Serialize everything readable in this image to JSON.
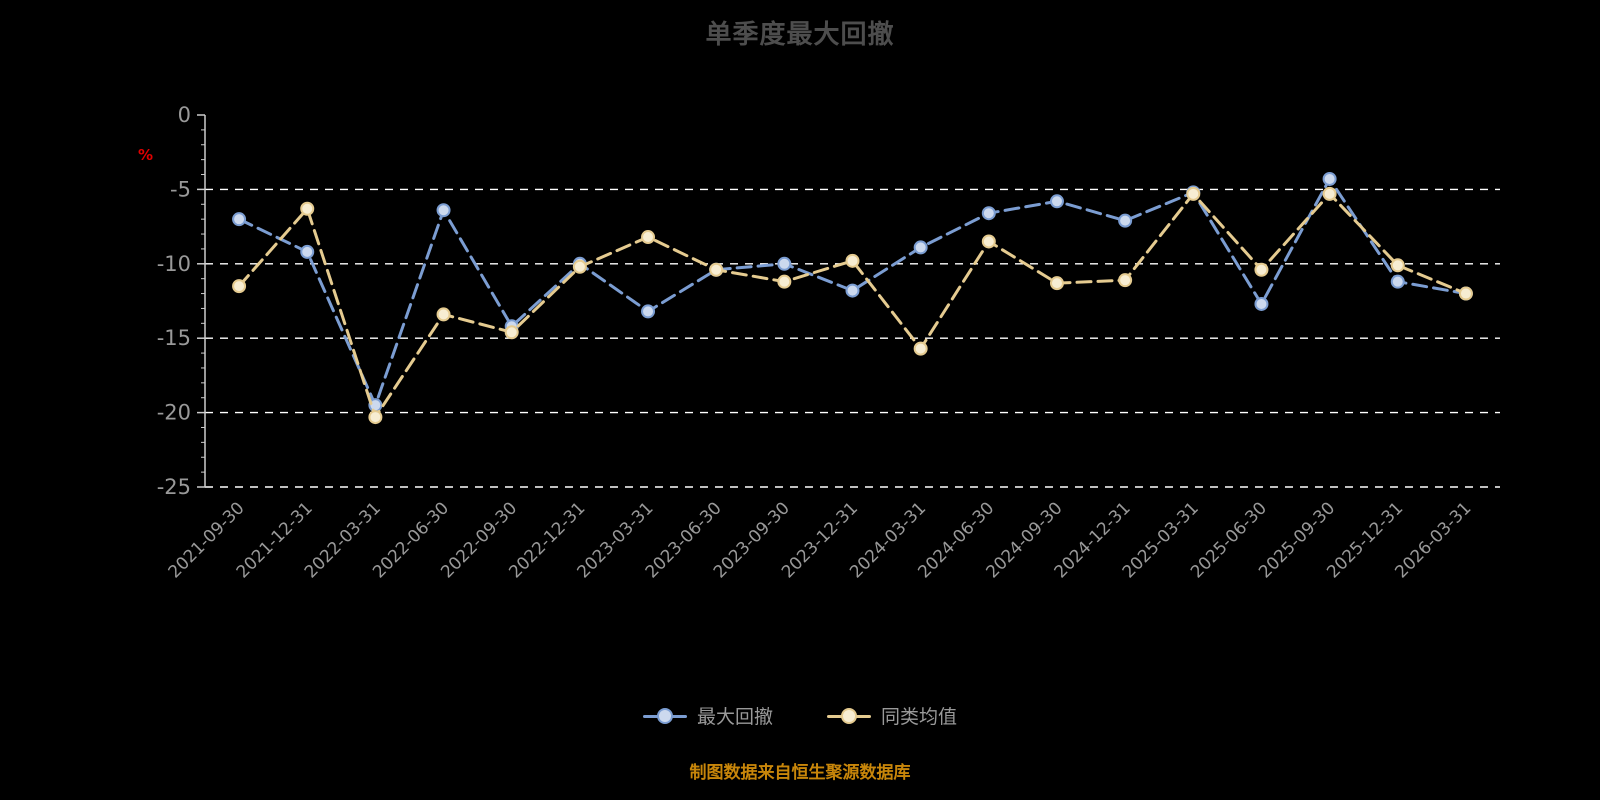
{
  "page": {
    "title": "单季度最大回撤",
    "footer": "制图数据来自恒生聚源数据库"
  },
  "colors": {
    "background": "#000000",
    "title": "#4d4d4d",
    "axis_text": "#999999",
    "axis_line": "#cccccc",
    "grid_line": "#ffffff",
    "percent_label": "#dd0000",
    "footer_text": "#c8860a",
    "legend_text": "#999999",
    "series_blue": "#7b9dd2",
    "series_yellow": "#e5cb90"
  },
  "chart_data": {
    "type": "line",
    "title": "单季度最大回撤",
    "xlabel": "",
    "ylabel": "%",
    "ylim": [
      -25,
      0
    ],
    "yticks": [
      0,
      -5,
      -10,
      -15,
      -20,
      -25
    ],
    "grid": true,
    "legend_position": "bottom",
    "categories": [
      "2021-09-30",
      "2021-12-31",
      "2022-03-31",
      "2022-06-30",
      "2022-09-30",
      "2022-12-31",
      "2023-03-31",
      "2023-06-30",
      "2023-09-30",
      "2023-12-31",
      "2024-03-31",
      "2024-06-30",
      "2024-09-30",
      "2024-12-31",
      "2025-03-31",
      "2025-06-30",
      "2025-09-30",
      "2025-12-31",
      "2026-03-31"
    ],
    "series": [
      {
        "name": "最大回撤",
        "color": "#7b9dd2",
        "marker_fill": "#ccd9ee",
        "values": [
          -7.0,
          -9.2,
          -19.5,
          -6.4,
          -14.2,
          -10.0,
          -13.2,
          -10.4,
          -10.0,
          -11.8,
          -8.9,
          -6.6,
          -5.8,
          -7.1,
          -5.2,
          -12.7,
          -4.3,
          -11.2,
          -12.0
        ]
      },
      {
        "name": "同类均值",
        "color": "#e5cb90",
        "marker_fill": "#f7edd2",
        "values": [
          -11.5,
          -6.3,
          -20.3,
          -13.4,
          -14.6,
          -10.2,
          -8.2,
          -10.4,
          -11.2,
          -9.8,
          -15.7,
          -8.5,
          -11.3,
          -11.1,
          -5.3,
          -10.4,
          -5.3,
          -10.1,
          -12.0
        ]
      }
    ]
  }
}
